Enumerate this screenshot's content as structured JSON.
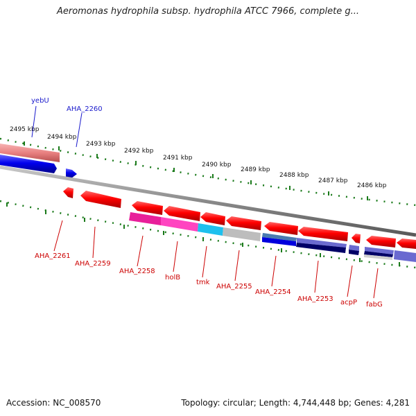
{
  "title": "Aeromonas hydrophila subsp. hydrophila ATCC 7966, complete g...",
  "footer": {
    "accession": "Accession: NC_008570",
    "summary": "Topology: circular; Length: 4,744,448 bp; Genes: 4,281"
  },
  "colors": {
    "forward_gene": "#0000ee",
    "forward_gene_faded": "#e88080",
    "reverse_gene": "#ff0000",
    "backbone": "#8a8a8a",
    "tick": "#1a7a1a",
    "label_forward": "#1a1acc",
    "label_reverse": "#cc0000"
  },
  "kbp_ticks": [
    "2495 kbp",
    "2494 kbp",
    "2493 kbp",
    "2492 kbp",
    "2491 kbp",
    "2490 kbp",
    "2489 kbp",
    "2488 kbp",
    "2487 kbp",
    "2486 kbp"
  ],
  "forward_labels": [
    "yebU",
    "AHA_2260"
  ],
  "reverse_labels": [
    "AHA_2261",
    "AHA_2259",
    "AHA_2258",
    "holB",
    "tmk",
    "AHA_2255",
    "AHA_2254",
    "AHA_2253",
    "acpP",
    "fabG"
  ]
}
